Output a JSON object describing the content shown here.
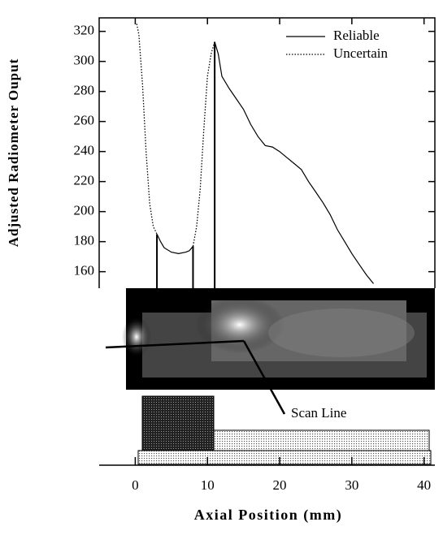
{
  "chart_data": {
    "type": "line",
    "xlabel": "Axial Position (mm)",
    "ylabel": "Adjusted Radiometer Ouput",
    "x": [
      0.2,
      0.5,
      1,
      1.5,
      2,
      2.5,
      3,
      3.5,
      4,
      5,
      6,
      7,
      7.5,
      8,
      8.5,
      9,
      9.5,
      10,
      10.5,
      11,
      11.5,
      12,
      13,
      14,
      15,
      16,
      17,
      18,
      19,
      20,
      21,
      22,
      23,
      24,
      25,
      26,
      27,
      28,
      29,
      30,
      31,
      32,
      33
    ],
    "series": [
      {
        "name": "Reliable",
        "style": "solid",
        "color": "#000000",
        "values": [
          null,
          null,
          null,
          null,
          null,
          null,
          185,
          180,
          176,
          173,
          172,
          173,
          174,
          177,
          null,
          null,
          null,
          null,
          null,
          313,
          305,
          290,
          282,
          275,
          268,
          258,
          250,
          244,
          243,
          240,
          236,
          232,
          228,
          220,
          213,
          206,
          198,
          188,
          180,
          172,
          165,
          158,
          152
        ]
      },
      {
        "name": "Uncertain",
        "style": "dotted",
        "color": "#000000",
        "values": [
          325,
          318,
          285,
          240,
          205,
          190,
          185,
          null,
          null,
          null,
          null,
          null,
          null,
          177,
          190,
          215,
          255,
          290,
          305,
          313,
          null,
          null,
          null,
          null,
          null,
          null,
          null,
          null,
          null,
          null,
          null,
          null,
          null,
          null,
          null,
          null,
          null,
          null,
          null,
          null,
          null,
          null,
          null
        ]
      }
    ],
    "markers": [
      3,
      8,
      11
    ],
    "annotation": "Scan Line",
    "xlim": [
      -5,
      41.5
    ],
    "xticks": [
      0,
      10,
      20,
      30,
      40
    ],
    "ylim": [
      149,
      329
    ],
    "yticks": [
      160,
      180,
      200,
      220,
      240,
      260,
      280,
      300,
      320
    ],
    "legend": "upper right"
  }
}
